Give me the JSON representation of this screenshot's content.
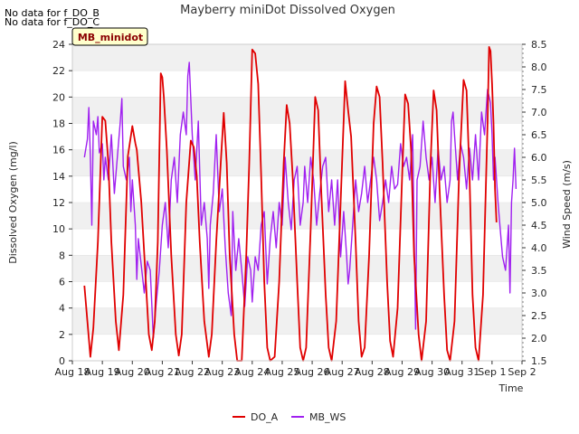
{
  "notes": [
    "No data for f_DO_B",
    "No data for f_DO_C"
  ],
  "badge": "MB_minidot",
  "chart_data": {
    "type": "line",
    "title": "Mayberry miniDot Dissolved Oxygen",
    "xlabel": "Time",
    "ylabel": "Dissolved Oxygen (mg/l)",
    "y2label": "Wind Speed (m/s)",
    "x_ticks": [
      "Aug 18",
      "Aug 19",
      "Aug 20",
      "Aug 21",
      "Aug 22",
      "Aug 23",
      "Aug 24",
      "Aug 25",
      "Aug 26",
      "Aug 27",
      "Aug 28",
      "Aug 29",
      "Aug 30",
      "Aug 31",
      "Sep 1",
      "Sep 2"
    ],
    "x_range_days": [
      0,
      15
    ],
    "ylim": [
      0,
      24
    ],
    "y_ticks": [
      0,
      2,
      4,
      6,
      8,
      10,
      12,
      14,
      16,
      18,
      20,
      22,
      24
    ],
    "y2lim": [
      1.5,
      8.5
    ],
    "y2_ticks": [
      1.5,
      2.0,
      2.5,
      3.0,
      3.5,
      4.0,
      4.5,
      5.0,
      5.5,
      6.0,
      6.5,
      7.0,
      7.5,
      8.0,
      8.5
    ],
    "grid": "horizontal bands",
    "legend_position": "bottom-center",
    "colors": {
      "DO_A": "#e00000",
      "MB_WS": "#a020f0"
    },
    "series": [
      {
        "name": "DO_A",
        "axis": "left",
        "points": [
          [
            0.4,
            5.7
          ],
          [
            0.5,
            3.0
          ],
          [
            0.6,
            0.3
          ],
          [
            0.7,
            2.5
          ],
          [
            0.85,
            9.0
          ],
          [
            1.0,
            18.5
          ],
          [
            1.1,
            18.2
          ],
          [
            1.2,
            15.0
          ],
          [
            1.3,
            9.0
          ],
          [
            1.45,
            3.0
          ],
          [
            1.55,
            0.8
          ],
          [
            1.7,
            5.0
          ],
          [
            1.85,
            15.5
          ],
          [
            2.0,
            17.8
          ],
          [
            2.1,
            16.5
          ],
          [
            2.15,
            16.0
          ],
          [
            2.3,
            12.0
          ],
          [
            2.45,
            6.0
          ],
          [
            2.55,
            2.0
          ],
          [
            2.65,
            0.8
          ],
          [
            2.75,
            3.0
          ],
          [
            2.85,
            9.0
          ],
          [
            2.95,
            21.8
          ],
          [
            3.0,
            21.5
          ],
          [
            3.05,
            20.0
          ],
          [
            3.15,
            16.0
          ],
          [
            3.3,
            8.0
          ],
          [
            3.45,
            2.0
          ],
          [
            3.55,
            0.4
          ],
          [
            3.65,
            2.0
          ],
          [
            3.8,
            12.0
          ],
          [
            3.95,
            16.7
          ],
          [
            4.05,
            16.2
          ],
          [
            4.15,
            14.0
          ],
          [
            4.25,
            9.0
          ],
          [
            4.4,
            3.0
          ],
          [
            4.55,
            0.3
          ],
          [
            4.65,
            2.0
          ],
          [
            4.8,
            9.0
          ],
          [
            4.95,
            15.0
          ],
          [
            5.05,
            18.8
          ],
          [
            5.15,
            15.0
          ],
          [
            5.25,
            8.0
          ],
          [
            5.4,
            2.0
          ],
          [
            5.5,
            0.0
          ],
          [
            5.65,
            0.0
          ],
          [
            5.8,
            8.0
          ],
          [
            5.9,
            15.0
          ],
          [
            6.0,
            23.6
          ],
          [
            6.1,
            23.3
          ],
          [
            6.2,
            21.0
          ],
          [
            6.3,
            14.0
          ],
          [
            6.4,
            6.0
          ],
          [
            6.5,
            1.0
          ],
          [
            6.6,
            0.0
          ],
          [
            6.75,
            0.3
          ],
          [
            6.9,
            6.0
          ],
          [
            7.05,
            15.0
          ],
          [
            7.15,
            19.4
          ],
          [
            7.25,
            18.0
          ],
          [
            7.35,
            14.0
          ],
          [
            7.5,
            6.0
          ],
          [
            7.6,
            1.0
          ],
          [
            7.7,
            0.0
          ],
          [
            7.8,
            1.0
          ],
          [
            7.95,
            10.0
          ],
          [
            8.1,
            20.0
          ],
          [
            8.2,
            19.0
          ],
          [
            8.3,
            13.0
          ],
          [
            8.45,
            5.0
          ],
          [
            8.55,
            1.0
          ],
          [
            8.65,
            0.0
          ],
          [
            8.8,
            3.0
          ],
          [
            8.95,
            12.0
          ],
          [
            9.1,
            21.2
          ],
          [
            9.2,
            19.0
          ],
          [
            9.3,
            17.0
          ],
          [
            9.45,
            9.0
          ],
          [
            9.55,
            3.0
          ],
          [
            9.65,
            0.3
          ],
          [
            9.75,
            1.0
          ],
          [
            9.9,
            8.0
          ],
          [
            10.05,
            18.0
          ],
          [
            10.15,
            20.8
          ],
          [
            10.25,
            20.0
          ],
          [
            10.35,
            15.0
          ],
          [
            10.5,
            6.0
          ],
          [
            10.6,
            1.5
          ],
          [
            10.7,
            0.3
          ],
          [
            10.85,
            4.0
          ],
          [
            11.0,
            14.0
          ],
          [
            11.1,
            20.2
          ],
          [
            11.2,
            19.5
          ],
          [
            11.3,
            16.0
          ],
          [
            11.4,
            8.0
          ],
          [
            11.55,
            2.0
          ],
          [
            11.65,
            0.0
          ],
          [
            11.8,
            3.0
          ],
          [
            11.95,
            15.0
          ],
          [
            12.05,
            20.5
          ],
          [
            12.15,
            19.0
          ],
          [
            12.25,
            13.0
          ],
          [
            12.4,
            5.0
          ],
          [
            12.5,
            0.8
          ],
          [
            12.6,
            0.0
          ],
          [
            12.75,
            3.0
          ],
          [
            12.9,
            14.0
          ],
          [
            13.05,
            21.3
          ],
          [
            13.15,
            20.5
          ],
          [
            13.25,
            14.0
          ],
          [
            13.35,
            5.0
          ],
          [
            13.45,
            1.0
          ],
          [
            13.55,
            0.0
          ],
          [
            13.7,
            5.0
          ],
          [
            13.85,
            18.0
          ],
          [
            13.9,
            23.8
          ],
          [
            13.95,
            23.5
          ],
          [
            14.0,
            21.0
          ],
          [
            14.05,
            18.0
          ],
          [
            14.1,
            13.0
          ],
          [
            14.15,
            10.5
          ]
        ]
      },
      {
        "name": "MB_WS",
        "axis": "right",
        "points": [
          [
            0.4,
            6.0
          ],
          [
            0.5,
            6.4
          ],
          [
            0.55,
            7.1
          ],
          [
            0.6,
            6.0
          ],
          [
            0.65,
            4.5
          ],
          [
            0.7,
            6.8
          ],
          [
            0.8,
            6.5
          ],
          [
            0.85,
            6.9
          ],
          [
            0.9,
            6.1
          ],
          [
            1.0,
            6.3
          ],
          [
            1.05,
            5.5
          ],
          [
            1.1,
            6.0
          ],
          [
            1.2,
            5.5
          ],
          [
            1.3,
            6.5
          ],
          [
            1.4,
            5.2
          ],
          [
            1.5,
            6.0
          ],
          [
            1.6,
            6.8
          ],
          [
            1.65,
            7.3
          ],
          [
            1.7,
            5.8
          ],
          [
            1.8,
            5.5
          ],
          [
            1.9,
            6.0
          ],
          [
            1.95,
            4.8
          ],
          [
            2.0,
            5.5
          ],
          [
            2.1,
            4.5
          ],
          [
            2.15,
            3.3
          ],
          [
            2.2,
            4.2
          ],
          [
            2.3,
            3.6
          ],
          [
            2.4,
            3.0
          ],
          [
            2.5,
            3.7
          ],
          [
            2.6,
            3.5
          ],
          [
            2.7,
            2.0
          ],
          [
            2.8,
            2.8
          ],
          [
            2.9,
            3.5
          ],
          [
            3.0,
            4.5
          ],
          [
            3.1,
            5.0
          ],
          [
            3.2,
            4.0
          ],
          [
            3.3,
            5.5
          ],
          [
            3.4,
            6.0
          ],
          [
            3.5,
            5.0
          ],
          [
            3.6,
            6.5
          ],
          [
            3.7,
            7.0
          ],
          [
            3.8,
            6.5
          ],
          [
            3.85,
            7.8
          ],
          [
            3.9,
            8.1
          ],
          [
            4.0,
            6.5
          ],
          [
            4.1,
            5.5
          ],
          [
            4.2,
            6.8
          ],
          [
            4.3,
            4.5
          ],
          [
            4.4,
            5.0
          ],
          [
            4.5,
            4.2
          ],
          [
            4.55,
            3.1
          ],
          [
            4.6,
            4.5
          ],
          [
            4.7,
            5.2
          ],
          [
            4.8,
            6.5
          ],
          [
            4.9,
            4.8
          ],
          [
            5.0,
            5.3
          ],
          [
            5.1,
            4.0
          ],
          [
            5.2,
            3.0
          ],
          [
            5.3,
            2.5
          ],
          [
            5.35,
            4.8
          ],
          [
            5.45,
            3.5
          ],
          [
            5.55,
            4.2
          ],
          [
            5.65,
            3.5
          ],
          [
            5.75,
            2.7
          ],
          [
            5.85,
            3.8
          ],
          [
            5.95,
            3.5
          ],
          [
            6.0,
            2.8
          ],
          [
            6.1,
            3.8
          ],
          [
            6.2,
            3.5
          ],
          [
            6.3,
            4.5
          ],
          [
            6.4,
            4.8
          ],
          [
            6.5,
            3.2
          ],
          [
            6.6,
            4.2
          ],
          [
            6.7,
            4.8
          ],
          [
            6.8,
            4.0
          ],
          [
            6.9,
            5.0
          ],
          [
            7.0,
            4.5
          ],
          [
            7.1,
            6.0
          ],
          [
            7.2,
            5.0
          ],
          [
            7.3,
            4.4
          ],
          [
            7.4,
            5.5
          ],
          [
            7.5,
            5.8
          ],
          [
            7.6,
            4.5
          ],
          [
            7.7,
            5.0
          ],
          [
            7.75,
            5.8
          ],
          [
            7.85,
            5.0
          ],
          [
            7.95,
            6.0
          ],
          [
            8.05,
            5.5
          ],
          [
            8.15,
            4.5
          ],
          [
            8.25,
            5.2
          ],
          [
            8.35,
            5.8
          ],
          [
            8.45,
            6.0
          ],
          [
            8.55,
            4.8
          ],
          [
            8.65,
            5.5
          ],
          [
            8.75,
            4.5
          ],
          [
            8.85,
            5.5
          ],
          [
            8.95,
            3.8
          ],
          [
            9.05,
            4.8
          ],
          [
            9.15,
            3.8
          ],
          [
            9.2,
            3.2
          ],
          [
            9.25,
            3.5
          ],
          [
            9.35,
            4.5
          ],
          [
            9.45,
            5.5
          ],
          [
            9.55,
            4.8
          ],
          [
            9.65,
            5.2
          ],
          [
            9.75,
            5.8
          ],
          [
            9.85,
            5.0
          ],
          [
            9.95,
            5.5
          ],
          [
            10.05,
            6.0
          ],
          [
            10.15,
            5.5
          ],
          [
            10.25,
            4.6
          ],
          [
            10.35,
            5.0
          ],
          [
            10.45,
            5.5
          ],
          [
            10.55,
            5.0
          ],
          [
            10.65,
            5.8
          ],
          [
            10.75,
            5.3
          ],
          [
            10.85,
            5.4
          ],
          [
            10.95,
            6.3
          ],
          [
            11.05,
            5.8
          ],
          [
            11.15,
            6.0
          ],
          [
            11.25,
            5.5
          ],
          [
            11.35,
            6.5
          ],
          [
            11.45,
            2.2
          ],
          [
            11.5,
            5.5
          ],
          [
            11.6,
            5.8
          ],
          [
            11.7,
            6.8
          ],
          [
            11.8,
            6.0
          ],
          [
            11.9,
            5.5
          ],
          [
            12.0,
            6.0
          ],
          [
            12.1,
            5.0
          ],
          [
            12.2,
            6.2
          ],
          [
            12.3,
            5.5
          ],
          [
            12.4,
            5.8
          ],
          [
            12.5,
            5.0
          ],
          [
            12.6,
            5.5
          ],
          [
            12.65,
            6.8
          ],
          [
            12.7,
            7.0
          ],
          [
            12.75,
            6.5
          ],
          [
            12.85,
            5.5
          ],
          [
            12.95,
            6.3
          ],
          [
            13.05,
            6.0
          ],
          [
            13.15,
            5.3
          ],
          [
            13.25,
            6.2
          ],
          [
            13.35,
            5.5
          ],
          [
            13.45,
            6.5
          ],
          [
            13.55,
            5.5
          ],
          [
            13.65,
            7.0
          ],
          [
            13.75,
            6.5
          ],
          [
            13.85,
            7.5
          ],
          [
            13.95,
            7.2
          ],
          [
            14.0,
            6.5
          ],
          [
            14.05,
            5.5
          ],
          [
            14.1,
            6.0
          ],
          [
            14.2,
            5.0
          ],
          [
            14.3,
            4.2
          ],
          [
            14.35,
            3.8
          ],
          [
            14.45,
            3.5
          ],
          [
            14.55,
            4.5
          ],
          [
            14.6,
            3.0
          ],
          [
            14.65,
            5.0
          ],
          [
            14.7,
            5.5
          ],
          [
            14.75,
            6.2
          ],
          [
            14.8,
            5.3
          ]
        ]
      }
    ]
  }
}
